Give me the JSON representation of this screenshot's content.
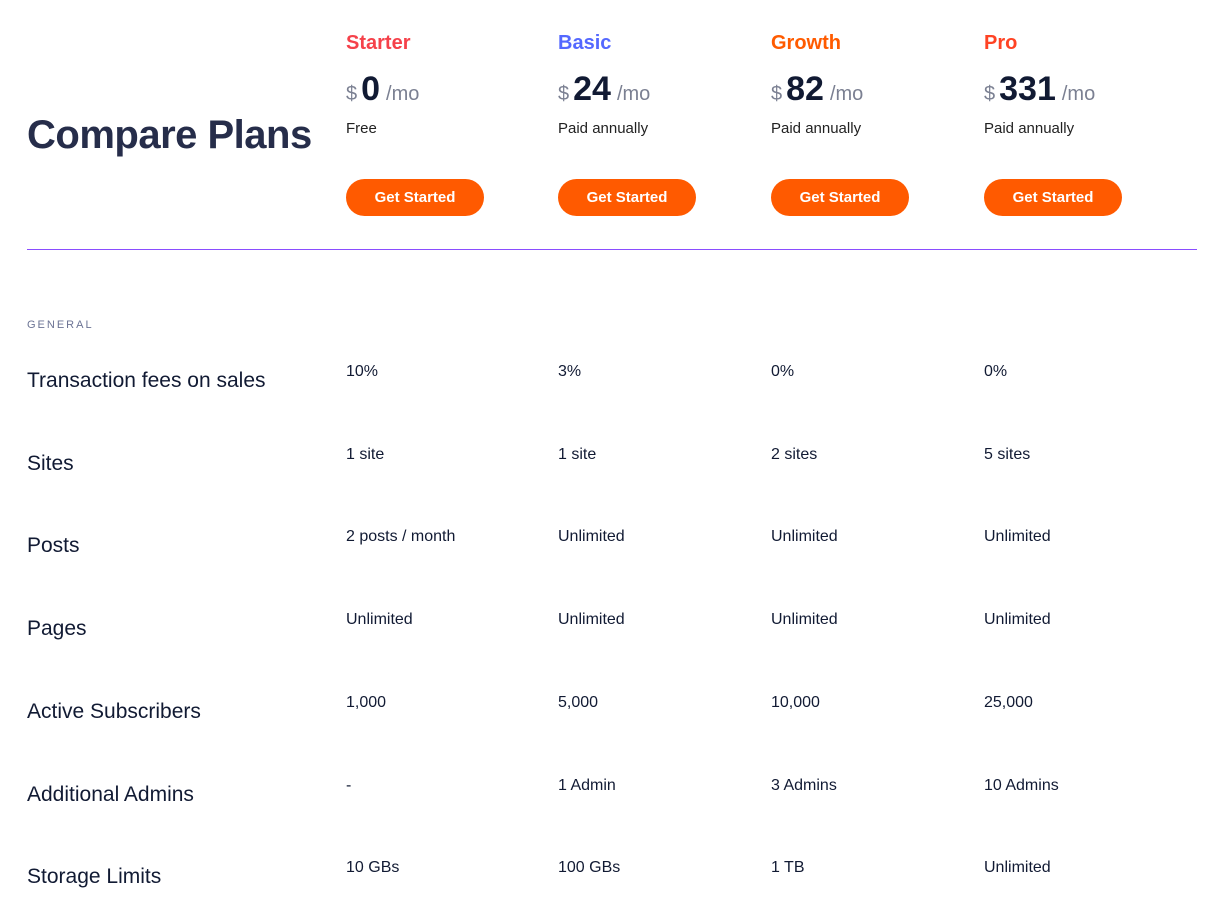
{
  "title": "Compare Plans",
  "colors": {
    "starter": "#f5414a",
    "basic": "#5468ff",
    "growth": "#ff5b00",
    "pro": "#ff4324",
    "button": "#ff5a00",
    "divider": "#8a4dff"
  },
  "plans": [
    {
      "name": "Starter",
      "currency": "$",
      "price": "0",
      "period": "/mo",
      "billing": "Free",
      "cta": "Get Started"
    },
    {
      "name": "Basic",
      "currency": "$",
      "price": "24",
      "period": "/mo",
      "billing": "Paid annually",
      "cta": "Get Started"
    },
    {
      "name": "Growth",
      "currency": "$",
      "price": "82",
      "period": "/mo",
      "billing": "Paid annually",
      "cta": "Get Started"
    },
    {
      "name": "Pro",
      "currency": "$",
      "price": "331",
      "period": "/mo",
      "billing": "Paid annually",
      "cta": "Get Started"
    }
  ],
  "section": "GENERAL",
  "rows": [
    {
      "label": "Transaction fees on sales",
      "values": [
        "10%",
        "3%",
        "0%",
        "0%"
      ]
    },
    {
      "label": "Sites",
      "values": [
        "1 site",
        "1 site",
        "2 sites",
        "5 sites"
      ]
    },
    {
      "label": "Posts",
      "values": [
        "2 posts / month",
        "Unlimited",
        "Unlimited",
        "Unlimited"
      ]
    },
    {
      "label": "Pages",
      "values": [
        "Unlimited",
        "Unlimited",
        "Unlimited",
        "Unlimited"
      ]
    },
    {
      "label": "Active Subscribers",
      "values": [
        "1,000",
        "5,000",
        "10,000",
        "25,000"
      ]
    },
    {
      "label": "Additional Admins",
      "values": [
        "-",
        "1 Admin",
        "3 Admins",
        "10 Admins"
      ]
    },
    {
      "label": "Storage Limits",
      "values": [
        "10 GBs",
        "100 GBs",
        "1 TB",
        "Unlimited"
      ]
    }
  ]
}
